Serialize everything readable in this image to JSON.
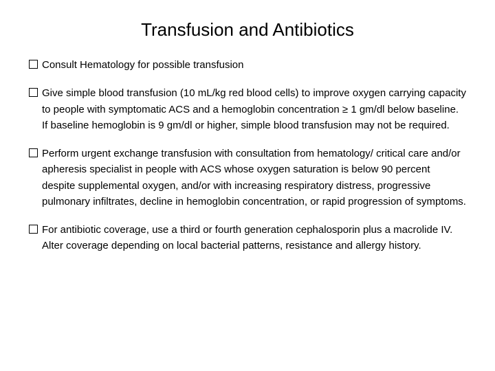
{
  "title": "Transfusion and Antibiotics",
  "items": [
    {
      "text": "Consult Hematology for possible transfusion"
    },
    {
      "text": "Give simple blood transfusion (10 mL/kg red blood cells) to improve oxygen carrying capacity to people with symptomatic ACS and a hemoglobin concentration ≥ 1 gm/dl below baseline. If baseline hemoglobin is 9 gm/dl or higher, simple blood transfusion may not be required."
    },
    {
      "text": "Perform urgent exchange transfusion with consultation from hematology/ critical care and/or apheresis specialist in people with ACS whose oxygen saturation is below 90 percent despite supplemental oxygen, and/or with increasing respiratory distress, progressive pulmonary infiltrates, decline in hemoglobin concentration, or rapid progression of symptoms."
    },
    {
      "text": "For antibiotic coverage, use a third or fourth generation cephalosporin   plus a macrolide IV.  Alter coverage depending on local bacterial patterns, resistance and allergy history."
    }
  ]
}
